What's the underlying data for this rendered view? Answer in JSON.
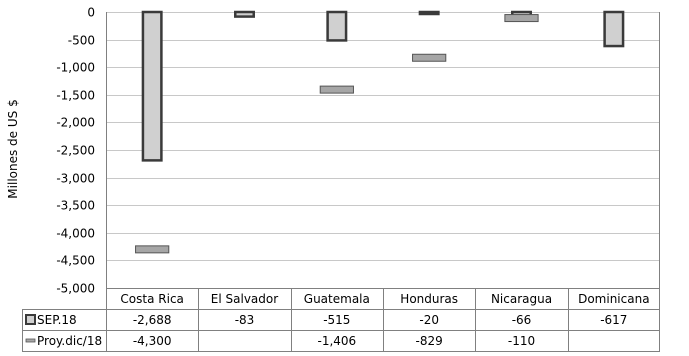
{
  "chart_data": {
    "type": "bar",
    "ylabel": "Millones de US $",
    "ylim": [
      -5000,
      0
    ],
    "yticks": [
      0,
      -500,
      -1000,
      -1500,
      -2000,
      -2500,
      -3000,
      -3500,
      -4000,
      -4500,
      -5000
    ],
    "ytick_labels": [
      "0",
      "-500",
      "-1,000",
      "-1,500",
      "-2,000",
      "-2,500",
      "-3,000",
      "-3,500",
      "-4,000",
      "-4,500",
      "-5,000"
    ],
    "categories": [
      "Costa Rica",
      "El Salvador",
      "Guatemala",
      "Honduras",
      "Nicaragua",
      "Dominicana"
    ],
    "grid": true,
    "series": [
      {
        "name": "SEP.18",
        "kind": "bar",
        "values": [
          -2688,
          -83,
          -515,
          -20,
          -66,
          -617
        ],
        "labels": [
          "-2,688",
          "-83",
          "-515",
          "-20",
          "-66",
          "-617"
        ],
        "fill": "#d0d0d0",
        "stroke": "#3a3a3a"
      },
      {
        "name": "Proy.dic/18",
        "kind": "marker",
        "values": [
          -4300,
          null,
          -1406,
          -829,
          -110,
          null
        ],
        "labels": [
          "-4,300",
          "",
          "-1,406",
          "-829",
          "-110",
          ""
        ],
        "fill": "#a6a6a6",
        "stroke": "#555555"
      }
    ],
    "colors": {
      "grid": "#c8c8c8",
      "axis": "#808080",
      "table_border": "#808080"
    }
  }
}
